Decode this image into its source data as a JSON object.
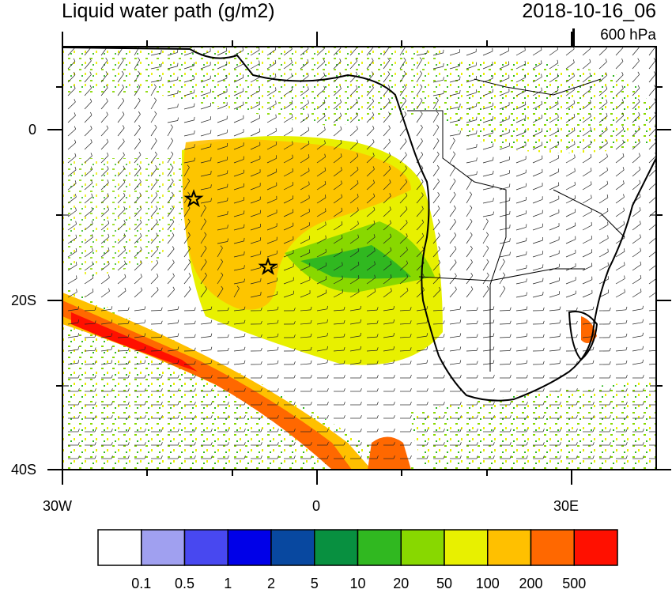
{
  "header": {
    "title": "Liquid water path (g/m2)",
    "datetime": "2018-10-16_06",
    "pressure_level": "600 hPa"
  },
  "axes": {
    "lat_ticks": [
      "0",
      "20S",
      "40S"
    ],
    "lon_ticks": [
      "30W",
      "0",
      "30E"
    ]
  },
  "colorbar": {
    "colors": [
      "#ffffff",
      "#a0a0f0",
      "#4848f0",
      "#0000e8",
      "#0848a0",
      "#089040",
      "#30b820",
      "#88d800",
      "#e8f000",
      "#ffc000",
      "#ff6800",
      "#ff1000"
    ],
    "labels": [
      "0.1",
      "0.5",
      "1",
      "2",
      "5",
      "10",
      "20",
      "50",
      "100",
      "200",
      "500"
    ]
  },
  "markers": {
    "count": 2,
    "symbol": "star"
  }
}
